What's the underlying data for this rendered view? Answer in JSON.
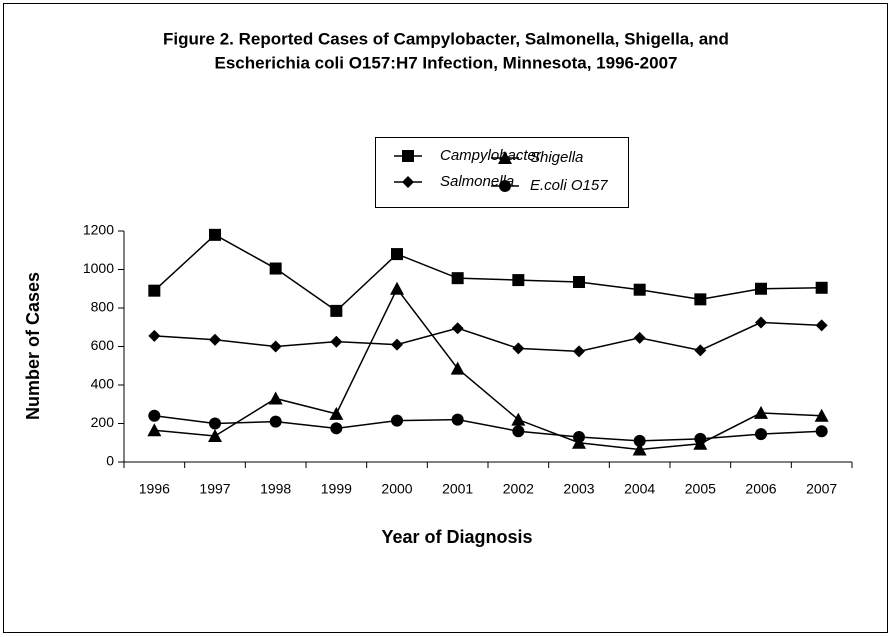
{
  "chart_data": {
    "type": "line",
    "title": [
      "Figure 2. Reported Cases of Campylobacter, Salmonella, Shigella, and",
      "Escherichia coli O157:H7 Infection, Minnesota, 1996-2007"
    ],
    "xlabel": "Year of Diagnosis",
    "ylabel": "Number of Cases",
    "categories": [
      "1996",
      "1997",
      "1998",
      "1999",
      "2000",
      "2001",
      "2002",
      "2003",
      "2004",
      "2005",
      "2006",
      "2007"
    ],
    "ylim": [
      0,
      1200
    ],
    "yticks": [
      0,
      200,
      400,
      600,
      800,
      1000,
      1200
    ],
    "grid": false,
    "series": [
      {
        "name": "Campylobacter",
        "color": "#000000",
        "marker": "square",
        "values": [
          890,
          1180,
          1005,
          785,
          1080,
          955,
          945,
          935,
          895,
          845,
          900,
          905
        ]
      },
      {
        "name": "Salmonella",
        "color": "#000000",
        "marker": "diamond",
        "values": [
          655,
          635,
          600,
          625,
          610,
          695,
          590,
          575,
          645,
          580,
          725,
          710
        ]
      },
      {
        "name": "Shigella",
        "color": "#000000",
        "marker": "triangle",
        "values": [
          165,
          135,
          330,
          250,
          900,
          485,
          220,
          100,
          65,
          95,
          255,
          240
        ]
      },
      {
        "name": "E.coli O157",
        "color": "#000000",
        "marker": "circle",
        "values": [
          240,
          200,
          210,
          175,
          215,
          220,
          160,
          130,
          110,
          120,
          145,
          160
        ]
      }
    ]
  }
}
